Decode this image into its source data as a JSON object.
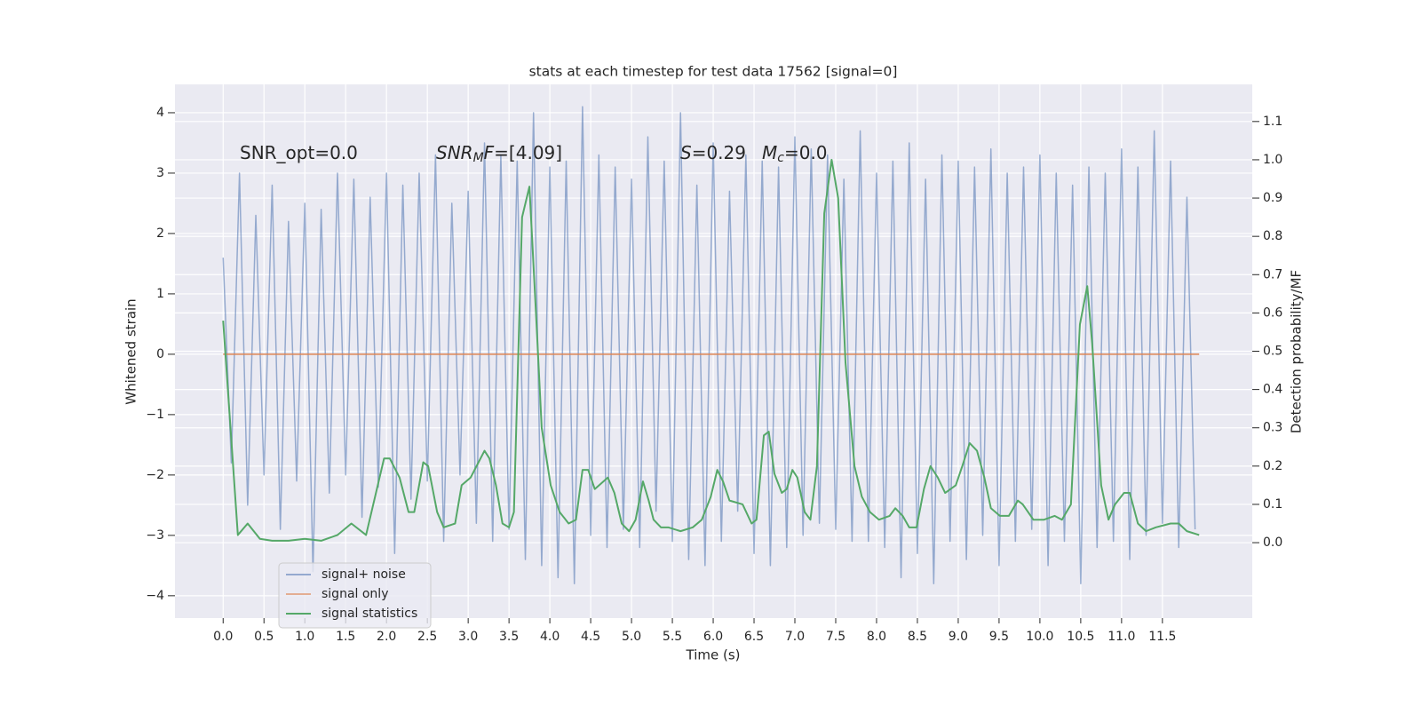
{
  "chart_data": {
    "type": "line",
    "title": "stats at each timestep for test data 17562 [signal=0]",
    "xlabel": "Time (s)",
    "ylabel": "Whitened strain",
    "y2label": "Detection probability/MF",
    "xlim": [
      -0.59,
      12.6
    ],
    "ylim": [
      -4.37,
      4.47
    ],
    "y2lim": [
      -0.197,
      1.197
    ],
    "xticks": [
      {
        "value": 0,
        "label": "0.0"
      },
      0.5,
      {
        "value": 1,
        "label": "1.0"
      },
      1.5,
      {
        "value": 2,
        "label": "2.0"
      },
      2.5,
      {
        "value": 3,
        "label": "3.0"
      },
      3.5,
      {
        "value": 4,
        "label": "4.0"
      },
      4.5,
      {
        "value": 5,
        "label": "5.0"
      },
      5.5,
      {
        "value": 6,
        "label": "6.0"
      },
      6.5,
      {
        "value": 7,
        "label": "7.0"
      },
      7.5,
      {
        "value": 8,
        "label": "8.0"
      },
      8.5,
      {
        "value": 9,
        "label": "9.0"
      },
      9.5,
      {
        "value": 10,
        "label": "10.0"
      },
      10.5,
      {
        "value": 11,
        "label": "11.0"
      },
      11.5
    ],
    "yticks": [
      {
        "value": -4,
        "label": "−4"
      },
      {
        "value": -3,
        "label": "−3"
      },
      {
        "value": -2,
        "label": "−2"
      },
      {
        "value": -1,
        "label": "−1"
      },
      0,
      1,
      2,
      3,
      4
    ],
    "y2ticks": [
      {
        "value": 0,
        "label": "0.0"
      },
      0.1,
      0.2,
      0.3,
      0.4,
      0.5,
      0.6,
      0.7,
      0.8,
      0.9,
      {
        "value": 1,
        "label": "1.0"
      },
      1.1
    ],
    "grid": true,
    "legend": "lower left",
    "annotations": [
      [
        {
          "text": "SNR_opt=0.0"
        }
      ],
      [
        {
          "text": "SNR",
          "italic": true
        },
        {
          "text": "M",
          "italic": true,
          "sub": true
        },
        {
          "text": "F",
          "italic": true
        },
        {
          "text": "=[4.09]"
        }
      ],
      [
        {
          "text": "S",
          "italic": true
        },
        {
          "text": "=0.29"
        }
      ],
      [
        {
          "text": "M",
          "italic": true
        },
        {
          "text": "c",
          "italic": true,
          "sub": true
        },
        {
          "text": "=0.0"
        }
      ]
    ],
    "series": [
      {
        "name": "signal+ noise",
        "color": "#4c72b0",
        "axis": "y",
        "x": [
          0,
          0.1,
          0.2,
          0.3,
          0.4,
          0.5,
          0.6,
          0.7,
          0.8,
          0.9,
          1,
          1.1,
          1.2,
          1.3,
          1.4,
          1.5,
          1.6,
          1.7,
          1.8,
          1.9,
          2,
          2.1,
          2.2,
          2.3,
          2.4,
          2.5,
          2.6,
          2.7,
          2.8,
          2.9,
          3,
          3.1,
          3.2,
          3.3,
          3.4,
          3.5,
          3.6,
          3.7,
          3.8,
          3.9,
          4,
          4.1,
          4.2,
          4.3,
          4.4,
          4.5,
          4.6,
          4.7,
          4.8,
          4.9,
          5,
          5.1,
          5.2,
          5.3,
          5.4,
          5.5,
          5.6,
          5.7,
          5.8,
          5.9,
          6,
          6.1,
          6.2,
          6.3,
          6.4,
          6.5,
          6.6,
          6.7,
          6.8,
          6.9,
          7,
          7.1,
          7.2,
          7.3,
          7.4,
          7.5,
          7.6,
          7.7,
          7.8,
          7.9,
          8,
          8.1,
          8.2,
          8.3,
          8.4,
          8.5,
          8.6,
          8.7,
          8.8,
          8.9,
          9,
          9.1,
          9.2,
          9.3,
          9.4,
          9.5,
          9.6,
          9.7,
          9.8,
          9.9,
          10,
          10.1,
          10.2,
          10.3,
          10.4,
          10.5,
          10.6,
          10.7,
          10.8,
          10.9,
          11,
          11.1,
          11.2,
          11.3,
          11.4,
          11.5,
          11.6,
          11.7,
          11.8,
          11.9
        ],
        "values": [
          1.6,
          -1.8,
          3.0,
          -2.5,
          2.3,
          -2.0,
          2.8,
          -2.9,
          2.2,
          -2.1,
          2.5,
          -3.6,
          2.4,
          -2.3,
          3.0,
          -2.0,
          2.9,
          -2.7,
          2.6,
          -2.2,
          3.0,
          -3.3,
          2.8,
          -2.4,
          3.0,
          -2.1,
          3.3,
          -3.1,
          2.5,
          -2.0,
          2.7,
          -2.8,
          3.5,
          -3.1,
          3.3,
          -2.9,
          3.2,
          -3.4,
          4.0,
          -3.5,
          3.1,
          -3.7,
          3.2,
          -3.8,
          4.1,
          -3.0,
          3.3,
          -3.2,
          3.1,
          -2.9,
          2.9,
          -3.2,
          3.6,
          -2.6,
          3.2,
          -3.1,
          4.0,
          -3.4,
          2.8,
          -3.5,
          3.5,
          -3.1,
          2.7,
          -2.6,
          3.3,
          -3.3,
          3.2,
          -3.5,
          3.1,
          -3.2,
          3.6,
          -3.0,
          3.4,
          -2.8,
          3.3,
          -2.9,
          2.9,
          -3.1,
          3.7,
          -3.1,
          3.0,
          -3.2,
          3.2,
          -3.7,
          3.5,
          -3.3,
          2.9,
          -3.8,
          3.3,
          -3.1,
          3.2,
          -3.4,
          3.1,
          -3.0,
          3.4,
          -3.5,
          3.0,
          -3.1,
          3.1,
          -2.9,
          3.3,
          -3.5,
          3.0,
          -3.1,
          2.8,
          -3.8,
          3.1,
          -3.2,
          3.0,
          -3.1,
          3.4,
          -3.4,
          3.1,
          -3.0,
          3.7,
          -2.8,
          3.2,
          -3.2,
          2.6,
          -2.9
        ]
      },
      {
        "name": "signal only",
        "color": "#dd8452",
        "axis": "y",
        "x": [
          0,
          11.95
        ],
        "values": [
          0,
          0
        ]
      },
      {
        "name": "signal statistics",
        "color": "#55a868",
        "axis": "y2",
        "x": [
          0,
          0.18,
          0.3,
          0.45,
          0.6,
          0.8,
          1.0,
          1.2,
          1.4,
          1.57,
          1.75,
          1.97,
          2.04,
          2.16,
          2.27,
          2.34,
          2.45,
          2.51,
          2.62,
          2.7,
          2.84,
          2.92,
          3.03,
          3.2,
          3.26,
          3.34,
          3.42,
          3.5,
          3.56,
          3.66,
          3.75,
          3.83,
          3.9,
          4.01,
          4.12,
          4.23,
          4.32,
          4.4,
          4.47,
          4.55,
          4.71,
          4.79,
          4.88,
          4.97,
          5.05,
          5.14,
          5.21,
          5.27,
          5.36,
          5.45,
          5.6,
          5.75,
          5.86,
          5.97,
          6.05,
          6.12,
          6.2,
          6.36,
          6.47,
          6.53,
          6.62,
          6.68,
          6.75,
          6.84,
          6.9,
          6.97,
          7.03,
          7.12,
          7.19,
          7.27,
          7.36,
          7.45,
          7.53,
          7.62,
          7.73,
          7.82,
          7.92,
          8.03,
          8.16,
          8.23,
          8.32,
          8.4,
          8.49,
          8.58,
          8.66,
          8.75,
          8.84,
          8.97,
          9.05,
          9.14,
          9.23,
          9.32,
          9.4,
          9.51,
          9.62,
          9.73,
          9.79,
          9.92,
          10.05,
          10.18,
          10.27,
          10.38,
          10.49,
          10.58,
          10.64,
          10.75,
          10.84,
          10.92,
          11.03,
          11.1,
          11.2,
          11.3,
          11.42,
          11.6,
          11.7,
          11.8,
          11.95
        ],
        "values": [
          0.58,
          0.02,
          0.05,
          0.01,
          0.005,
          0.005,
          0.01,
          0.005,
          0.02,
          0.05,
          0.02,
          0.22,
          0.22,
          0.17,
          0.08,
          0.08,
          0.21,
          0.2,
          0.08,
          0.04,
          0.05,
          0.15,
          0.17,
          0.24,
          0.22,
          0.15,
          0.05,
          0.04,
          0.08,
          0.85,
          0.93,
          0.6,
          0.3,
          0.15,
          0.08,
          0.05,
          0.06,
          0.19,
          0.19,
          0.14,
          0.17,
          0.13,
          0.05,
          0.03,
          0.06,
          0.16,
          0.11,
          0.06,
          0.04,
          0.04,
          0.03,
          0.04,
          0.06,
          0.12,
          0.19,
          0.16,
          0.11,
          0.1,
          0.05,
          0.06,
          0.28,
          0.29,
          0.18,
          0.13,
          0.14,
          0.19,
          0.17,
          0.08,
          0.06,
          0.2,
          0.86,
          1.0,
          0.9,
          0.47,
          0.2,
          0.12,
          0.08,
          0.06,
          0.07,
          0.09,
          0.07,
          0.04,
          0.04,
          0.14,
          0.2,
          0.17,
          0.13,
          0.15,
          0.2,
          0.26,
          0.24,
          0.17,
          0.09,
          0.07,
          0.07,
          0.11,
          0.1,
          0.06,
          0.06,
          0.07,
          0.06,
          0.1,
          0.57,
          0.67,
          0.52,
          0.15,
          0.06,
          0.1,
          0.13,
          0.13,
          0.05,
          0.03,
          0.04,
          0.05,
          0.05,
          0.03,
          0.02
        ]
      }
    ]
  }
}
